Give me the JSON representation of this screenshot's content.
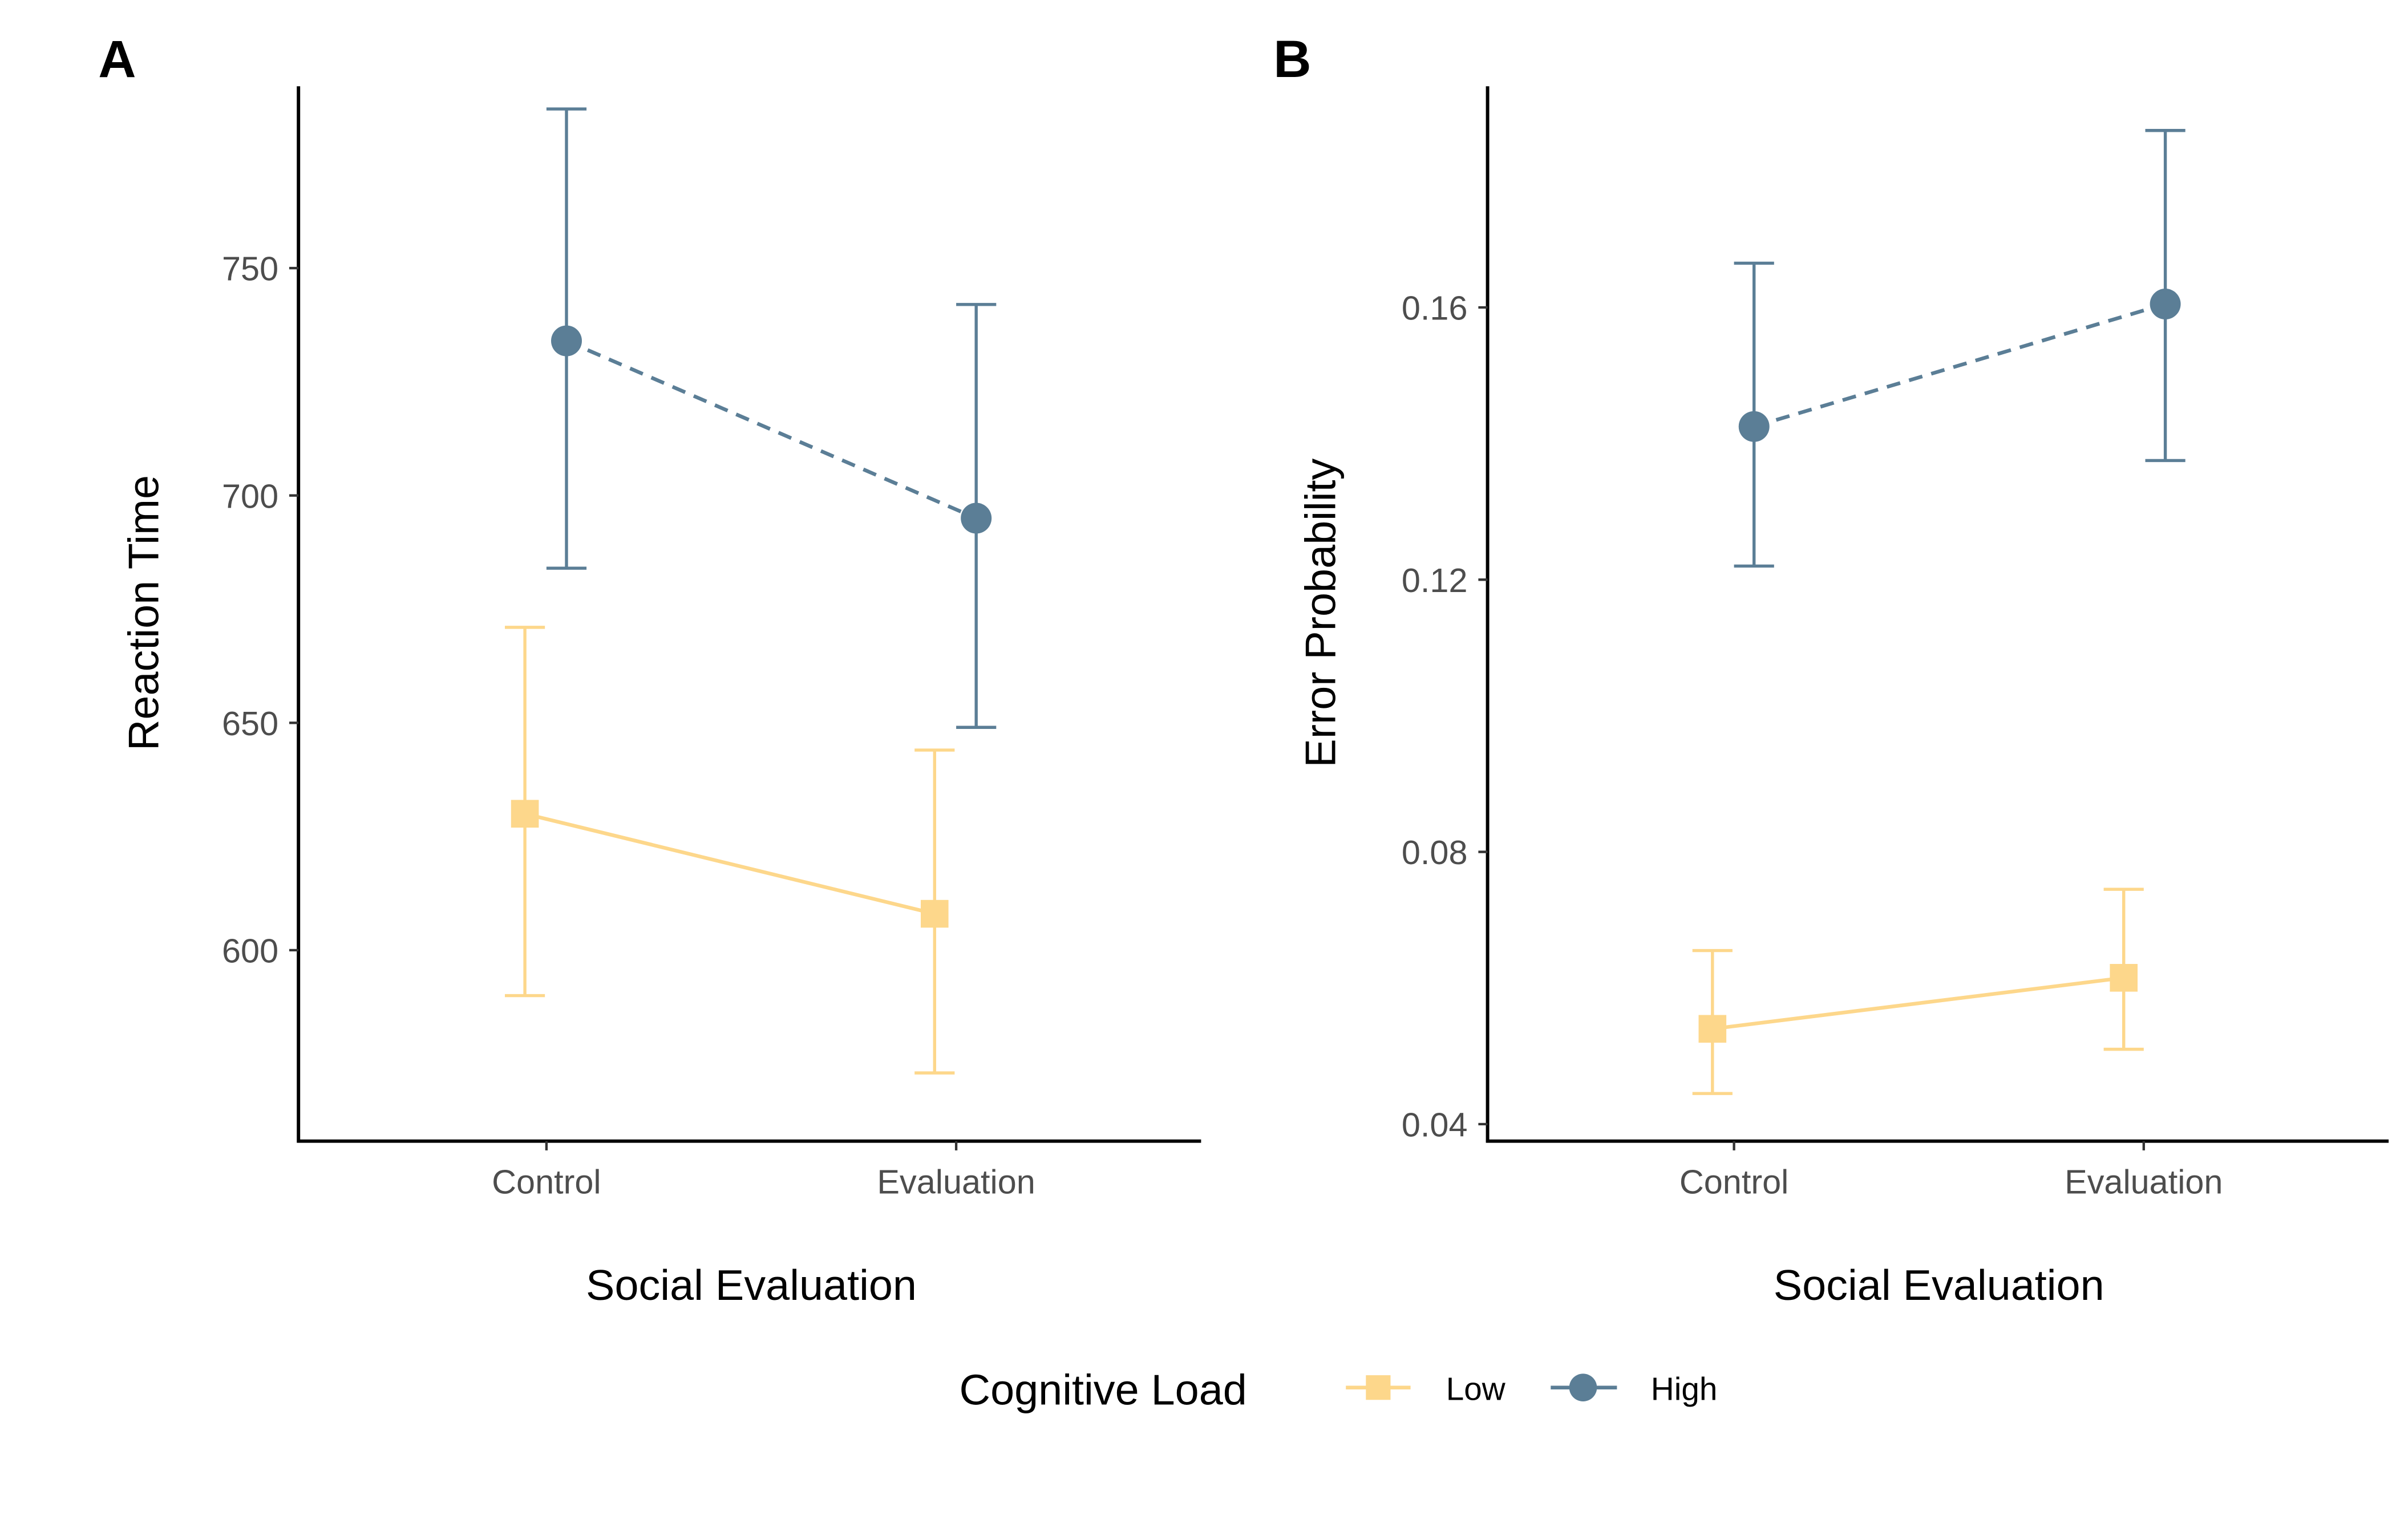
{
  "colors": {
    "low": "#FDD78B",
    "high": "#5B7E96",
    "axis": "#000000",
    "tick_text": "#4d4d4d"
  },
  "legend": {
    "title": "Cognitive Load",
    "entries": [
      {
        "label": "Low",
        "marker": "square"
      },
      {
        "label": "High",
        "marker": "circle"
      }
    ]
  },
  "chart_data": [
    {
      "type": "line",
      "panel_label": "A",
      "categories": [
        "Control",
        "Evaluation"
      ],
      "xlabel": "Social Evaluation",
      "ylabel": "Reaction Time",
      "ylim": [
        558,
        790
      ],
      "yticks": [
        600,
        650,
        700,
        750
      ],
      "ytick_labels": [
        "600",
        "650",
        "700",
        "750"
      ],
      "series": [
        {
          "name": "Low",
          "marker": "square",
          "line_style": "solid",
          "values": [
            630,
            608
          ],
          "lower": [
            590,
            573
          ],
          "upper": [
            671,
            644
          ]
        },
        {
          "name": "High",
          "marker": "circle",
          "line_style": "dashed",
          "values": [
            734,
            695
          ],
          "lower": [
            684,
            649
          ],
          "upper": [
            785,
            742
          ]
        }
      ]
    },
    {
      "type": "line",
      "panel_label": "B",
      "categories": [
        "Control",
        "Evaluation"
      ],
      "xlabel": "Social Evaluation",
      "ylabel": "Error Probability",
      "ylim": [
        0.0375,
        0.1925
      ],
      "yticks": [
        0.04,
        0.08,
        0.12,
        0.16
      ],
      "ytick_labels": [
        "0.04",
        "0.08",
        "0.12",
        "0.16"
      ],
      "series": [
        {
          "name": "Low",
          "marker": "square",
          "line_style": "solid",
          "values": [
            0.054,
            0.0615
          ],
          "lower": [
            0.0445,
            0.051
          ],
          "upper": [
            0.0655,
            0.0745
          ]
        },
        {
          "name": "High",
          "marker": "circle",
          "line_style": "dashed",
          "values": [
            0.1425,
            0.1605
          ],
          "lower": [
            0.122,
            0.1375
          ],
          "upper": [
            0.1665,
            0.186
          ]
        }
      ]
    }
  ]
}
